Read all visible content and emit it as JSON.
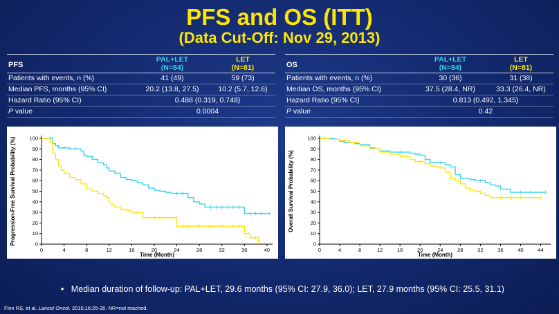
{
  "title": "PFS and OS (ITT)",
  "subtitle": "(Data Cut-Off: Nov 29, 2013)",
  "colors": {
    "pal_let": "#33d6ee",
    "let": "#ffe600",
    "title": "#ffe600"
  },
  "pfs_table": {
    "label": "PFS",
    "col1_head": "PAL+LET",
    "col1_n": "(N=84)",
    "col2_head": "LET",
    "col2_n": "(N=81)",
    "rows": [
      {
        "label": "Patients with events, n (%)",
        "v1": "41 (49)",
        "v2": "59 (73)"
      },
      {
        "label": "Median PFS, months (95% CI)",
        "v1": "20.2 (13.8, 27.5)",
        "v2": "10.2 (5.7, 12.6)"
      }
    ],
    "hr_label": "Hazard Ratio (95% CI)",
    "hr_value": "0.488 (0.319, 0.748)",
    "p_label_italic": "P",
    "p_label_rest": " value",
    "p_value": "0.0004"
  },
  "os_table": {
    "label": "OS",
    "col1_head": "PAL+LET",
    "col1_n": "(N=84)",
    "col2_head": "LET",
    "col2_n": "(N=81)",
    "rows": [
      {
        "label": "Patients with events, n (%)",
        "v1": "30 (36)",
        "v2": "31 (38)"
      },
      {
        "label": "Median OS, months (95% CI)",
        "v1": "37.5 (28.4, NR)",
        "v2": "33.3 (26.4, NR)"
      }
    ],
    "hr_label": "Hazard Ratio (95% CI)",
    "hr_value": "0.813 (0.492, 1.345)",
    "p_label_italic": "P",
    "p_label_rest": " value",
    "p_value": "0.42"
  },
  "chart_data": [
    {
      "type": "line",
      "step": true,
      "xlabel": "Time (Month)",
      "ylabel": "Progression-Free Survival Probability (%)",
      "xlim": [
        0,
        41
      ],
      "ylim": [
        0,
        100
      ],
      "xticks": [
        0,
        4,
        8,
        12,
        16,
        20,
        24,
        28,
        32,
        36,
        40
      ],
      "yticks": [
        0,
        10,
        20,
        30,
        40,
        50,
        60,
        70,
        80,
        90,
        100
      ],
      "series": [
        {
          "color": "#33d6ee",
          "x": [
            0,
            1.5,
            2,
            2.5,
            3,
            4,
            5,
            6,
            7,
            7.5,
            8,
            9,
            10,
            11,
            11.5,
            12,
            13,
            14,
            15,
            16,
            17,
            18,
            19,
            20,
            21,
            22,
            23,
            24,
            25,
            26,
            27,
            28,
            29,
            30,
            31,
            32,
            33,
            34,
            35,
            36,
            37,
            38,
            39,
            40.5
          ],
          "y": [
            100,
            100,
            95,
            93,
            91,
            91,
            90,
            90,
            88,
            84,
            83,
            80,
            77,
            75,
            72,
            69,
            67,
            63,
            61,
            60,
            58,
            56,
            53,
            51,
            50,
            49,
            48,
            48,
            48,
            44,
            40,
            38,
            35,
            35,
            35,
            35,
            35,
            35,
            35,
            29,
            29,
            29,
            29,
            29
          ]
        },
        {
          "color": "#ffe600",
          "x": [
            0,
            1.5,
            2,
            2.5,
            3,
            3.5,
            4,
            5,
            6,
            7,
            8,
            9,
            10,
            11,
            11.5,
            12,
            12.5,
            13,
            14,
            15,
            16,
            17,
            18,
            20,
            21,
            22,
            23,
            24,
            25,
            26,
            28,
            30,
            32,
            34,
            35,
            36,
            37,
            38,
            38.5
          ],
          "y": [
            100,
            96,
            86,
            80,
            74,
            70,
            67,
            63,
            61,
            57,
            52,
            50,
            48,
            46,
            44,
            39,
            37,
            35,
            33,
            32,
            30,
            30,
            25,
            25,
            25,
            25,
            25,
            17,
            17,
            17,
            17,
            17,
            17,
            17,
            17,
            10,
            6,
            6,
            0
          ]
        }
      ]
    },
    {
      "type": "line",
      "step": true,
      "xlabel": "Time (Month)",
      "ylabel": "Overall Survival Probability (%)",
      "xlim": [
        0,
        46
      ],
      "ylim": [
        0,
        100
      ],
      "xticks": [
        0,
        4,
        8,
        12,
        16,
        20,
        24,
        28,
        32,
        36,
        40,
        44
      ],
      "yticks": [
        0,
        10,
        20,
        30,
        40,
        50,
        60,
        70,
        80,
        90,
        100
      ],
      "series": [
        {
          "color": "#33d6ee",
          "x": [
            0,
            1,
            3,
            4,
            5,
            7,
            8,
            10,
            11,
            12,
            14,
            16,
            18,
            19,
            20,
            21,
            22,
            24,
            25,
            26,
            27,
            28,
            30,
            31,
            32,
            33,
            34,
            35,
            36,
            38,
            40,
            42,
            45
          ],
          "y": [
            100,
            100,
            99,
            97,
            96,
            95,
            94,
            91,
            90,
            88,
            87,
            87,
            86,
            85,
            84,
            80,
            77,
            77,
            75,
            73,
            66,
            62,
            61,
            60,
            60,
            58,
            56,
            55,
            52,
            49,
            49,
            49,
            49
          ]
        },
        {
          "color": "#ffe600",
          "x": [
            0,
            1,
            2,
            4,
            6,
            8,
            10,
            12,
            14,
            16,
            18,
            19,
            20,
            21,
            22,
            23,
            24,
            25,
            26,
            27,
            28,
            29,
            30,
            31,
            32,
            33,
            34,
            36,
            38,
            40,
            44
          ],
          "y": [
            100,
            100,
            99,
            98,
            96,
            93,
            90,
            87,
            85,
            83,
            80,
            78,
            78,
            76,
            74,
            73,
            72,
            68,
            62,
            60,
            57,
            53,
            51,
            50,
            48,
            46,
            44,
            44,
            44,
            44,
            44
          ]
        }
      ]
    }
  ],
  "bullet": "Median duration of follow-up: PAL+LET, 29.6 months (95% CI: 27.9, 36.0); LET, 27.9 months (95% CI: 25.5, 31.1)",
  "footer": {
    "pre": "Finn RS, et al. ",
    "journal": "Lancet Oncol.",
    "post": " 2015;16:25-35. NR=not reached."
  }
}
